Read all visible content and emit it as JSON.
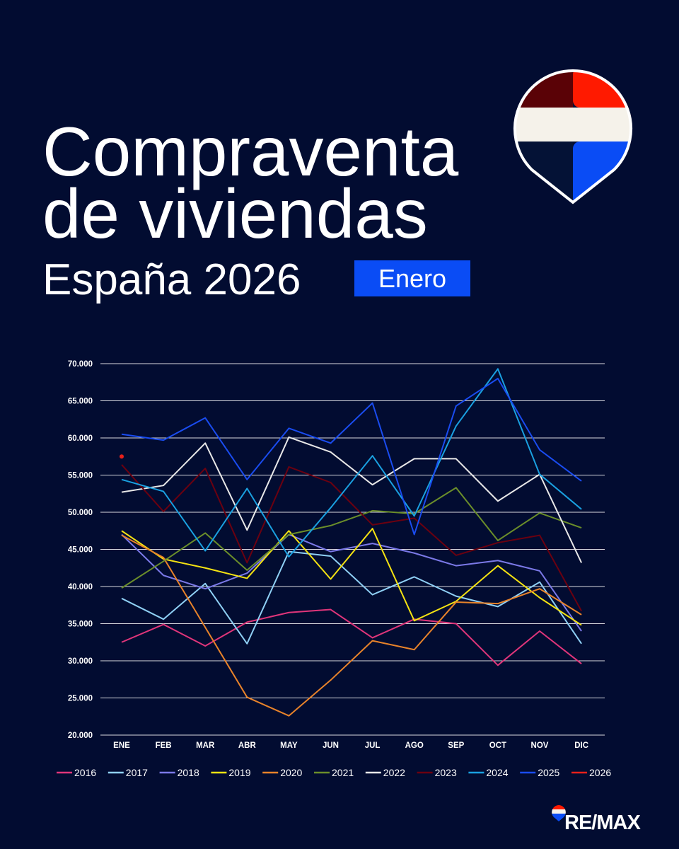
{
  "chart_data": {
    "type": "line",
    "title_lines": [
      "Compraventa",
      "de viviendas"
    ],
    "subtitle": "España 2026",
    "badge": "Enero",
    "brand": "RE/MAX",
    "categories": [
      "ENE",
      "FEB",
      "MAR",
      "ABR",
      "MAY",
      "JUN",
      "JUL",
      "AGO",
      "SEP",
      "OCT",
      "NOV",
      "DIC"
    ],
    "ylim": [
      20000,
      70000
    ],
    "yticks": [
      {
        "value": 20000,
        "label": "20.000"
      },
      {
        "value": 25000,
        "label": "25.000"
      },
      {
        "value": 30000,
        "label": "30.000"
      },
      {
        "value": 35000,
        "label": "35.000"
      },
      {
        "value": 40000,
        "label": "40.000"
      },
      {
        "value": 45000,
        "label": "45.000"
      },
      {
        "value": 50000,
        "label": "50.000"
      },
      {
        "value": 55000,
        "label": "55.000"
      },
      {
        "value": 60000,
        "label": "60.000"
      },
      {
        "value": 65000,
        "label": "65.000"
      },
      {
        "value": 70000,
        "label": "70.000"
      }
    ],
    "grid": true,
    "legend": "bottom",
    "series": [
      {
        "name": "2016",
        "color": "#e0357a",
        "values": [
          32500,
          34900,
          32000,
          35200,
          36500,
          36900,
          33100,
          35600,
          35000,
          29400,
          34000,
          29600
        ]
      },
      {
        "name": "2017",
        "color": "#8fd0f5",
        "values": [
          38400,
          35600,
          40400,
          32300,
          44700,
          44100,
          38900,
          41300,
          38700,
          37300,
          40600,
          32300
        ]
      },
      {
        "name": "2018",
        "color": "#7b79e8",
        "values": [
          47000,
          41500,
          39700,
          41800,
          47000,
          44700,
          45800,
          44500,
          42800,
          43500,
          42100,
          34000
        ]
      },
      {
        "name": "2019",
        "color": "#f5e312",
        "values": [
          47500,
          43700,
          42500,
          41100,
          47500,
          41000,
          47800,
          35400,
          38000,
          42800,
          38500,
          34800
        ]
      },
      {
        "name": "2020",
        "color": "#e8832a",
        "values": [
          46900,
          43900,
          34500,
          25100,
          22600,
          27400,
          32700,
          31500,
          37900,
          37700,
          39700,
          36200
        ]
      },
      {
        "name": "2021",
        "color": "#6b8e2a",
        "values": [
          39800,
          43400,
          47200,
          42200,
          47000,
          48200,
          50200,
          49800,
          53300,
          46200,
          49900,
          47900
        ]
      },
      {
        "name": "2022",
        "color": "#e8e8e8",
        "values": [
          52700,
          53600,
          59300,
          47600,
          60100,
          58100,
          53700,
          57200,
          57200,
          51500,
          55100,
          43200
        ]
      },
      {
        "name": "2023",
        "color": "#6b0010",
        "values": [
          56400,
          50100,
          55900,
          43200,
          56100,
          54000,
          48300,
          49200,
          44200,
          45900,
          46900,
          36700
        ]
      },
      {
        "name": "2024",
        "color": "#1aa0e0",
        "values": [
          54400,
          52800,
          44800,
          53200,
          44000,
          50600,
          57600,
          49500,
          61600,
          69300,
          55100,
          50400
        ]
      },
      {
        "name": "2025",
        "color": "#1a4cf0",
        "values": [
          60500,
          59700,
          62700,
          54400,
          61300,
          59300,
          64700,
          47000,
          64300,
          68000,
          58400,
          54200
        ]
      },
      {
        "name": "2026",
        "color": "#e8201a",
        "values": [
          57500,
          null,
          null,
          null,
          null,
          null,
          null,
          null,
          null,
          null,
          null,
          null
        ]
      }
    ]
  }
}
